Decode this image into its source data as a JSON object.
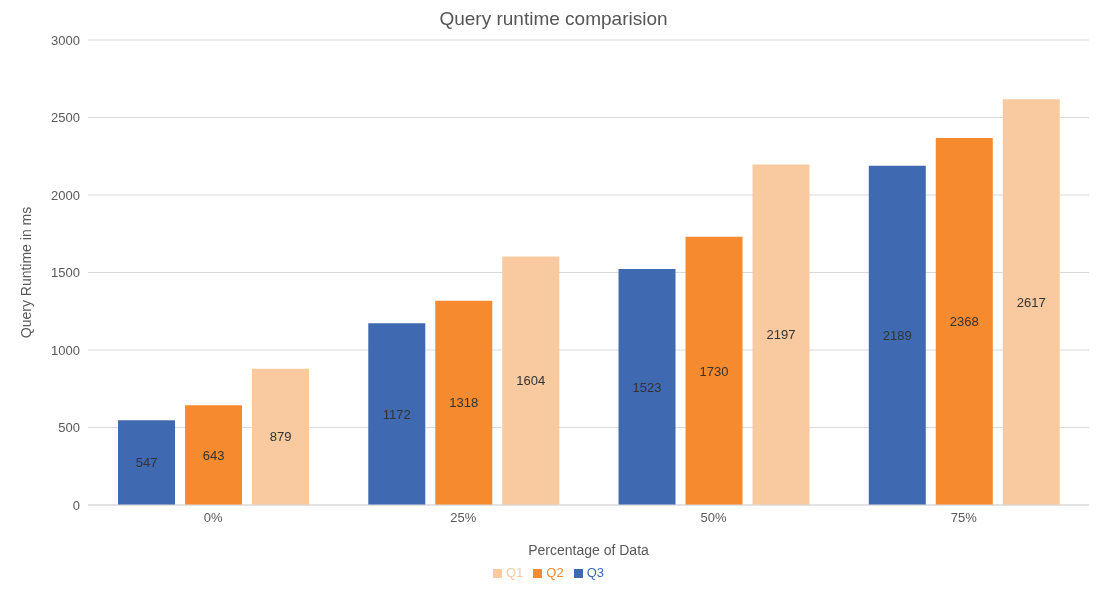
{
  "chart_data": {
    "type": "bar",
    "title": "Query runtime comparision",
    "xlabel": "Percentage of Data",
    "ylabel": "Query Runtime in ms",
    "categories": [
      "0%",
      "25%",
      "50%",
      "75%"
    ],
    "series": [
      {
        "name": "Q3",
        "color": "#3f6ab1",
        "values": [
          547,
          1172,
          1523,
          2189
        ]
      },
      {
        "name": "Q2",
        "color": "#f58a2e",
        "values": [
          643,
          1318,
          1730,
          2368
        ]
      },
      {
        "name": "Q1",
        "color": "#f9c9a0",
        "values": [
          879,
          1604,
          2197,
          2617
        ]
      }
    ],
    "ylim": [
      0,
      3000
    ],
    "yticks": [
      0,
      500,
      1000,
      1500,
      2000,
      2500,
      3000
    ],
    "grid": "y",
    "legend": "bottom",
    "data_labels": true
  }
}
